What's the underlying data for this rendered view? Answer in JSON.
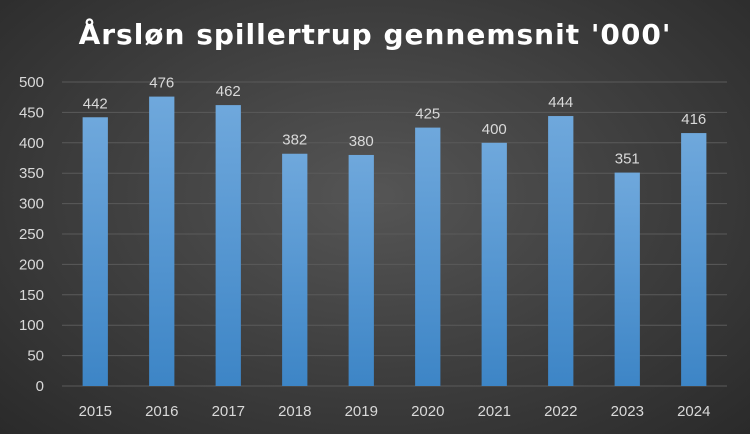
{
  "chart_data": {
    "type": "bar",
    "title": "Årsløn spillertrup gennemsnit '000'",
    "xlabel": "",
    "ylabel": "",
    "categories": [
      "2015",
      "2016",
      "2017",
      "2018",
      "2019",
      "2020",
      "2021",
      "2022",
      "2023",
      "2024"
    ],
    "values": [
      442,
      476,
      462,
      382,
      380,
      425,
      400,
      444,
      351,
      416
    ],
    "data_labels": [
      "442",
      "476",
      "462",
      "382",
      "380",
      "425",
      "400",
      "444",
      "351",
      "416"
    ],
    "ylim": [
      0,
      500
    ],
    "yticks": [
      0,
      50,
      100,
      150,
      200,
      250,
      300,
      350,
      400,
      450,
      500
    ],
    "grid": true,
    "legend": "none",
    "colors": {
      "bar_top": "#6fa8dc",
      "bar_bottom": "#3d85c6"
    }
  }
}
